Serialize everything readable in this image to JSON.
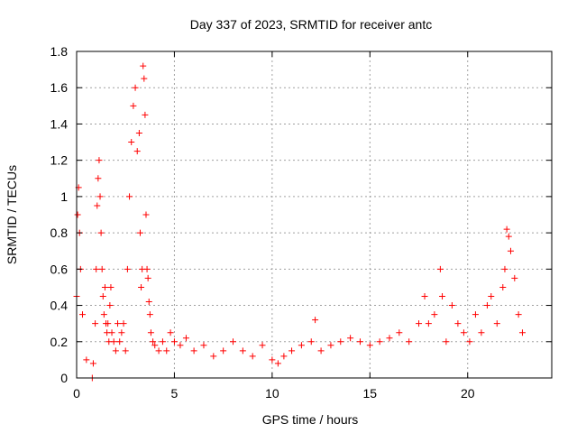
{
  "chart_data": {
    "type": "scatter",
    "title": "Day 337 of 2023, SRMTID for receiver antc",
    "xlabel": "GPS time / hours",
    "ylabel": "SRMTID / TECUs",
    "xlim": [
      0,
      24.3
    ],
    "ylim": [
      0,
      1.8
    ],
    "xticks": [
      0,
      5,
      10,
      15,
      20
    ],
    "yticks": [
      0,
      0.2,
      0.4,
      0.6,
      0.8,
      1,
      1.2,
      1.4,
      1.6,
      1.8
    ],
    "xtick_labels": [
      "0",
      "5",
      "10",
      "15",
      "20"
    ],
    "ytick_labels": [
      "0",
      "0.2",
      "0.4",
      "0.6",
      "0.8",
      "1",
      "1.2",
      "1.4",
      "1.6",
      "1.8"
    ],
    "grid": true,
    "marker": "+",
    "colors": {
      "series": "#ff0000",
      "grid": "#a0a0a0",
      "axis": "#000000"
    },
    "series": [
      {
        "name": "SRMTID",
        "x": [
          0.0,
          0.05,
          0.1,
          0.15,
          0.2,
          0.3,
          0.5,
          0.8,
          0.85,
          0.95,
          1.0,
          1.05,
          1.1,
          1.15,
          1.2,
          1.25,
          1.3,
          1.35,
          1.4,
          1.45,
          1.5,
          1.55,
          1.6,
          1.65,
          1.7,
          1.75,
          1.8,
          1.9,
          2.0,
          2.1,
          2.2,
          2.3,
          2.4,
          2.5,
          2.6,
          2.7,
          2.8,
          2.9,
          3.0,
          3.1,
          3.2,
          3.25,
          3.3,
          3.35,
          3.4,
          3.45,
          3.5,
          3.55,
          3.6,
          3.65,
          3.7,
          3.75,
          3.8,
          3.9,
          4.0,
          4.2,
          4.4,
          4.6,
          4.8,
          5.0,
          5.3,
          5.6,
          6.0,
          6.5,
          7.0,
          7.5,
          8.0,
          8.5,
          9.0,
          9.5,
          10.0,
          10.3,
          10.6,
          11.0,
          11.5,
          12.0,
          12.2,
          12.5,
          13.0,
          13.5,
          14.0,
          14.5,
          15.0,
          15.5,
          16.0,
          16.5,
          17.0,
          17.5,
          17.8,
          18.0,
          18.3,
          18.6,
          18.7,
          18.9,
          19.2,
          19.5,
          19.8,
          20.1,
          20.4,
          20.7,
          21.0,
          21.2,
          21.5,
          21.8,
          21.9,
          22.0,
          22.1,
          22.2,
          22.4,
          22.6,
          22.8
        ],
        "y": [
          0.45,
          0.9,
          1.05,
          0.8,
          0.6,
          0.35,
          0.1,
          0.0,
          0.08,
          0.3,
          0.6,
          0.95,
          1.1,
          1.2,
          1.0,
          0.8,
          0.6,
          0.45,
          0.35,
          0.5,
          0.3,
          0.25,
          0.3,
          0.2,
          0.4,
          0.5,
          0.25,
          0.2,
          0.15,
          0.3,
          0.2,
          0.25,
          0.3,
          0.15,
          0.6,
          1.0,
          1.3,
          1.5,
          1.6,
          1.25,
          1.35,
          0.8,
          0.5,
          0.6,
          1.72,
          1.65,
          1.45,
          0.9,
          0.6,
          0.55,
          0.42,
          0.35,
          0.25,
          0.2,
          0.18,
          0.15,
          0.2,
          0.15,
          0.25,
          0.2,
          0.18,
          0.22,
          0.15,
          0.18,
          0.12,
          0.15,
          0.2,
          0.15,
          0.12,
          0.18,
          0.1,
          0.08,
          0.12,
          0.15,
          0.18,
          0.2,
          0.32,
          0.15,
          0.18,
          0.2,
          0.22,
          0.2,
          0.18,
          0.2,
          0.22,
          0.25,
          0.2,
          0.3,
          0.45,
          0.3,
          0.35,
          0.6,
          0.45,
          0.2,
          0.4,
          0.3,
          0.25,
          0.2,
          0.35,
          0.25,
          0.4,
          0.45,
          0.3,
          0.5,
          0.6,
          0.82,
          0.78,
          0.7,
          0.55,
          0.35,
          0.25
        ]
      }
    ]
  }
}
